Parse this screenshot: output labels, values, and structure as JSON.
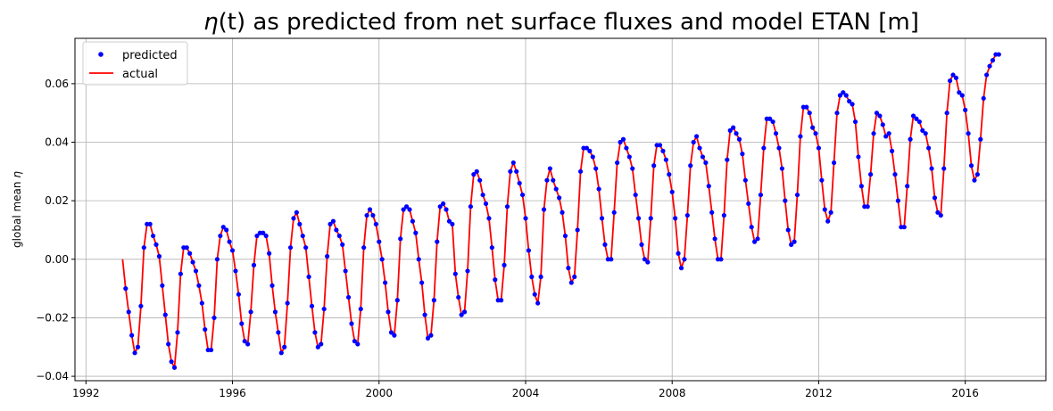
{
  "chart_data": {
    "type": "line",
    "title_main": "η",
    "title_arg": "(t)",
    "title_rest": " as predicted from net surface fluxes and model ETAN [m]",
    "xlabel": "",
    "ylabel_text": "global mean ",
    "ylabel_symbol": "η",
    "xlim": [
      1991.7,
      2018.2
    ],
    "ylim": [
      -0.0415,
      0.0755
    ],
    "x_ticks": [
      1992,
      1996,
      2000,
      2004,
      2008,
      2012,
      2016
    ],
    "x_tick_labels": [
      "1992",
      "1996",
      "2000",
      "2004",
      "2008",
      "2012",
      "2016"
    ],
    "y_ticks": [
      -0.04,
      -0.02,
      0.0,
      0.02,
      0.04,
      0.06
    ],
    "y_tick_labels": [
      "−0.04",
      "−0.02",
      "0.00",
      "0.02",
      "0.04",
      "0.06"
    ],
    "grid": true,
    "legend_position": "top-left",
    "series": [
      {
        "name": "predicted",
        "style": "markers",
        "color": "#0000ff",
        "time_start": 1993.0,
        "step_per_point": 0.0833333,
        "y_start_index": 1
      },
      {
        "name": "actual",
        "style": "line",
        "color": "#ff0000",
        "time_start": 1993.0,
        "step_per_point": 0.0833333,
        "y_start_index": 0
      }
    ],
    "values": [
      0.0,
      -0.01,
      -0.018,
      -0.026,
      -0.032,
      -0.03,
      -0.016,
      0.004,
      0.012,
      0.012,
      0.008,
      0.005,
      0.001,
      -0.009,
      -0.019,
      -0.029,
      -0.035,
      -0.037,
      -0.025,
      -0.005,
      0.004,
      0.004,
      0.002,
      -0.001,
      -0.004,
      -0.009,
      -0.015,
      -0.024,
      -0.031,
      -0.031,
      -0.02,
      0.0,
      0.008,
      0.011,
      0.01,
      0.006,
      0.003,
      -0.004,
      -0.012,
      -0.022,
      -0.028,
      -0.029,
      -0.018,
      -0.002,
      0.008,
      0.009,
      0.009,
      0.008,
      0.002,
      -0.009,
      -0.018,
      -0.025,
      -0.032,
      -0.03,
      -0.015,
      0.004,
      0.014,
      0.016,
      0.012,
      0.008,
      0.004,
      -0.006,
      -0.016,
      -0.025,
      -0.03,
      -0.029,
      -0.017,
      0.001,
      0.012,
      0.013,
      0.01,
      0.008,
      0.005,
      -0.004,
      -0.013,
      -0.022,
      -0.028,
      -0.029,
      -0.017,
      0.004,
      0.015,
      0.017,
      0.015,
      0.012,
      0.006,
      0.0,
      -0.008,
      -0.018,
      -0.025,
      -0.026,
      -0.014,
      0.007,
      0.017,
      0.018,
      0.017,
      0.013,
      0.009,
      0.0,
      -0.008,
      -0.019,
      -0.027,
      -0.026,
      -0.014,
      0.006,
      0.018,
      0.019,
      0.017,
      0.013,
      0.012,
      -0.005,
      -0.013,
      -0.019,
      -0.018,
      -0.004,
      0.018,
      0.029,
      0.03,
      0.027,
      0.022,
      0.019,
      0.014,
      0.004,
      -0.007,
      -0.014,
      -0.014,
      -0.002,
      0.018,
      0.03,
      0.033,
      0.03,
      0.026,
      0.022,
      0.014,
      0.003,
      -0.006,
      -0.012,
      -0.015,
      -0.006,
      0.017,
      0.027,
      0.031,
      0.027,
      0.024,
      0.021,
      0.016,
      0.008,
      -0.003,
      -0.008,
      -0.006,
      0.01,
      0.03,
      0.038,
      0.038,
      0.037,
      0.035,
      0.031,
      0.024,
      0.014,
      0.005,
      0.0,
      0.0,
      0.016,
      0.033,
      0.04,
      0.041,
      0.038,
      0.035,
      0.031,
      0.022,
      0.014,
      0.005,
      0.0,
      -0.001,
      0.014,
      0.032,
      0.039,
      0.039,
      0.037,
      0.034,
      0.029,
      0.023,
      0.014,
      0.002,
      -0.003,
      0.0,
      0.015,
      0.032,
      0.04,
      0.042,
      0.038,
      0.035,
      0.033,
      0.025,
      0.016,
      0.007,
      0.0,
      0.0,
      0.015,
      0.034,
      0.044,
      0.045,
      0.043,
      0.041,
      0.036,
      0.027,
      0.019,
      0.011,
      0.006,
      0.007,
      0.022,
      0.038,
      0.048,
      0.048,
      0.047,
      0.043,
      0.038,
      0.031,
      0.02,
      0.01,
      0.005,
      0.006,
      0.022,
      0.042,
      0.052,
      0.052,
      0.05,
      0.045,
      0.043,
      0.038,
      0.027,
      0.017,
      0.013,
      0.016,
      0.033,
      0.05,
      0.056,
      0.057,
      0.056,
      0.054,
      0.053,
      0.047,
      0.035,
      0.025,
      0.018,
      0.018,
      0.029,
      0.043,
      0.05,
      0.049,
      0.046,
      0.042,
      0.043,
      0.037,
      0.029,
      0.02,
      0.011,
      0.011,
      0.025,
      0.041,
      0.049,
      0.048,
      0.047,
      0.044,
      0.043,
      0.038,
      0.031,
      0.021,
      0.016,
      0.015,
      0.031,
      0.05,
      0.061,
      0.063,
      0.062,
      0.057,
      0.056,
      0.051,
      0.043,
      0.032,
      0.027,
      0.029,
      0.041,
      0.055,
      0.063,
      0.066,
      0.068,
      0.07,
      0.07
    ]
  }
}
